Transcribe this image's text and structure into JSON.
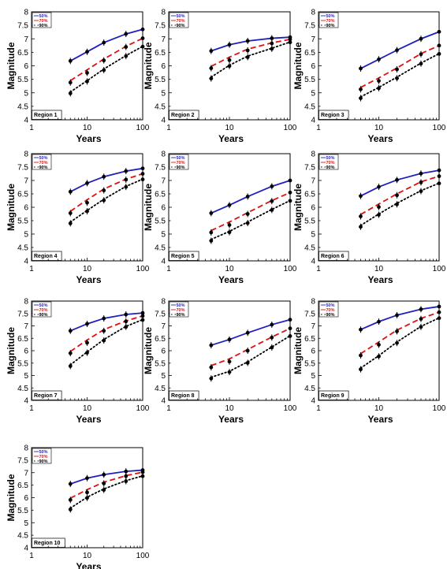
{
  "legend": [
    "50%",
    "70%",
    "90%"
  ],
  "colors": {
    "50%": "#1f1fbf",
    "70%": "#e01010",
    "90%": "#000000"
  },
  "chart_data": [
    {
      "type": "line",
      "title": "Region 1",
      "xlabel": "Years",
      "ylabel": "Magnitude",
      "x_scale": "log",
      "xlim": [
        1,
        100
      ],
      "ylim": [
        4,
        8
      ],
      "x": [
        5,
        10,
        20,
        50,
        100
      ],
      "series": [
        {
          "name": "50%",
          "values": [
            6.18,
            6.52,
            6.86,
            7.18,
            7.35
          ]
        },
        {
          "name": "70%",
          "values": [
            5.45,
            5.85,
            6.25,
            6.72,
            7.02
          ]
        },
        {
          "name": "90%",
          "values": [
            5.03,
            5.45,
            5.88,
            6.38,
            6.72
          ]
        }
      ]
    },
    {
      "type": "line",
      "title": "Region 2",
      "xlabel": "Years",
      "ylabel": "Magnitude",
      "x_scale": "log",
      "xlim": [
        1,
        100
      ],
      "ylim": [
        4,
        8
      ],
      "x": [
        5,
        10,
        20,
        50,
        100
      ],
      "series": [
        {
          "name": "50%",
          "values": [
            6.55,
            6.78,
            6.92,
            7.02,
            7.06
          ]
        },
        {
          "name": "70%",
          "values": [
            5.98,
            6.32,
            6.62,
            6.85,
            6.98
          ]
        },
        {
          "name": "90%",
          "values": [
            5.58,
            6.02,
            6.36,
            6.65,
            6.88
          ]
        }
      ]
    },
    {
      "type": "line",
      "title": "Region 3",
      "xlabel": "Years",
      "ylabel": "Magnitude",
      "x_scale": "log",
      "xlim": [
        1,
        100
      ],
      "ylim": [
        4,
        8
      ],
      "x": [
        5,
        10,
        20,
        50,
        100
      ],
      "series": [
        {
          "name": "50%",
          "values": [
            5.9,
            6.24,
            6.58,
            7.0,
            7.26
          ]
        },
        {
          "name": "70%",
          "values": [
            5.2,
            5.55,
            5.92,
            6.45,
            6.75
          ]
        },
        {
          "name": "90%",
          "values": [
            4.85,
            5.2,
            5.58,
            6.1,
            6.45
          ]
        }
      ]
    },
    {
      "type": "line",
      "title": "Region 4",
      "xlabel": "Years",
      "ylabel": "Magnitude",
      "x_scale": "log",
      "xlim": [
        1,
        100
      ],
      "ylim": [
        4,
        8
      ],
      "x": [
        5,
        10,
        20,
        50,
        100
      ],
      "series": [
        {
          "name": "50%",
          "values": [
            6.58,
            6.9,
            7.14,
            7.35,
            7.45
          ]
        },
        {
          "name": "70%",
          "values": [
            5.85,
            6.28,
            6.68,
            7.05,
            7.25
          ]
        },
        {
          "name": "90%",
          "values": [
            5.45,
            5.88,
            6.3,
            6.78,
            7.05
          ]
        }
      ]
    },
    {
      "type": "line",
      "title": "Region 5",
      "xlabel": "Years",
      "ylabel": "Magnitude",
      "x_scale": "log",
      "xlim": [
        1,
        100
      ],
      "ylim": [
        4,
        8
      ],
      "x": [
        5,
        10,
        20,
        50,
        100
      ],
      "series": [
        {
          "name": "50%",
          "values": [
            5.78,
            6.08,
            6.4,
            6.78,
            7.0
          ]
        },
        {
          "name": "70%",
          "values": [
            5.13,
            5.45,
            5.8,
            6.25,
            6.55
          ]
        },
        {
          "name": "90%",
          "values": [
            4.8,
            5.1,
            5.45,
            5.92,
            6.25
          ]
        }
      ]
    },
    {
      "type": "line",
      "title": "Region 6",
      "xlabel": "Years",
      "ylabel": "Magnitude",
      "x_scale": "log",
      "xlim": [
        1,
        100
      ],
      "ylim": [
        4,
        8
      ],
      "x": [
        5,
        10,
        20,
        50,
        100
      ],
      "series": [
        {
          "name": "50%",
          "values": [
            6.42,
            6.76,
            7.02,
            7.26,
            7.38
          ]
        },
        {
          "name": "70%",
          "values": [
            5.73,
            6.12,
            6.5,
            6.95,
            7.16
          ]
        },
        {
          "name": "90%",
          "values": [
            5.32,
            5.75,
            6.15,
            6.62,
            6.9
          ]
        }
      ]
    },
    {
      "type": "line",
      "title": "Region 7",
      "xlabel": "Years",
      "ylabel": "Magnitude",
      "x_scale": "log",
      "xlim": [
        1,
        100
      ],
      "ylim": [
        4,
        8
      ],
      "x": [
        5,
        10,
        20,
        50,
        100
      ],
      "series": [
        {
          "name": "50%",
          "values": [
            6.8,
            7.08,
            7.3,
            7.46,
            7.52
          ]
        },
        {
          "name": "70%",
          "values": [
            5.97,
            6.43,
            6.85,
            7.2,
            7.4
          ]
        },
        {
          "name": "90%",
          "values": [
            5.43,
            5.95,
            6.45,
            6.98,
            7.25
          ]
        }
      ]
    },
    {
      "type": "line",
      "title": "Region 8",
      "xlabel": "Years",
      "ylabel": "Magnitude",
      "x_scale": "log",
      "xlim": [
        1,
        100
      ],
      "ylim": [
        4,
        8
      ],
      "x": [
        5,
        10,
        20,
        50,
        100
      ],
      "series": [
        {
          "name": "50%",
          "values": [
            6.22,
            6.45,
            6.72,
            7.05,
            7.25
          ]
        },
        {
          "name": "70%",
          "values": [
            5.4,
            5.67,
            6.05,
            6.55,
            6.9
          ]
        },
        {
          "name": "90%",
          "values": [
            4.93,
            5.17,
            5.55,
            6.15,
            6.6
          ]
        }
      ]
    },
    {
      "type": "line",
      "title": "Region 9",
      "xlabel": "Years",
      "ylabel": "Magnitude",
      "x_scale": "log",
      "xlim": [
        1,
        100
      ],
      "ylim": [
        4,
        8
      ],
      "x": [
        5,
        10,
        20,
        50,
        100
      ],
      "series": [
        {
          "name": "50%",
          "values": [
            6.85,
            7.17,
            7.43,
            7.67,
            7.78
          ]
        },
        {
          "name": "70%",
          "values": [
            5.88,
            6.35,
            6.83,
            7.3,
            7.55
          ]
        },
        {
          "name": "90%",
          "values": [
            5.3,
            5.8,
            6.35,
            6.98,
            7.32
          ]
        }
      ]
    },
    {
      "type": "line",
      "title": "Region 10",
      "xlabel": "Years",
      "ylabel": "Magnitude",
      "x_scale": "log",
      "xlim": [
        1,
        100
      ],
      "ylim": [
        4,
        8
      ],
      "x": [
        5,
        10,
        20,
        50,
        100
      ],
      "series": [
        {
          "name": "50%",
          "values": [
            6.55,
            6.78,
            6.92,
            7.05,
            7.1
          ]
        },
        {
          "name": "70%",
          "values": [
            5.98,
            6.32,
            6.62,
            6.88,
            7.02
          ]
        },
        {
          "name": "90%",
          "values": [
            5.58,
            6.02,
            6.35,
            6.68,
            6.87
          ]
        }
      ]
    }
  ]
}
